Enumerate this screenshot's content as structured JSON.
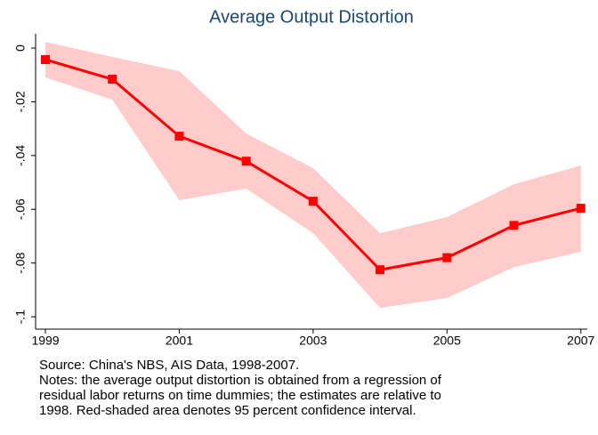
{
  "chart_data": {
    "type": "line",
    "title": "Average Output Distortion",
    "x": [
      1999,
      2000,
      2001,
      2002,
      2003,
      2004,
      2005,
      2006,
      2007
    ],
    "values": [
      -0.0043,
      -0.0116,
      -0.0328,
      -0.0421,
      -0.057,
      -0.0825,
      -0.078,
      -0.066,
      -0.0596
    ],
    "upper": [
      0.0023,
      -0.0033,
      -0.0086,
      -0.0318,
      -0.0447,
      -0.0689,
      -0.0629,
      -0.0507,
      -0.0437
    ],
    "lower": [
      -0.0109,
      -0.0192,
      -0.0566,
      -0.0523,
      -0.0689,
      -0.0967,
      -0.093,
      -0.0815,
      -0.0758
    ],
    "color": "#ff0000",
    "band_color": "#ffcccc",
    "xlim": [
      1998.92,
      2007.07
    ],
    "xticks": [
      1999,
      2001,
      2003,
      2005,
      2007
    ],
    "ylim": [
      -0.1046,
      0.0053
    ],
    "yticks": [
      0,
      {
        "value": -0.02,
        "label": "-.02"
      },
      {
        "value": -0.04,
        "label": "-.04"
      },
      {
        "value": -0.06,
        "label": "-.06"
      },
      {
        "value": -0.08,
        "label": "-.08"
      },
      {
        "value": -0.1,
        "label": "-.1"
      }
    ],
    "notes": [
      "Source: China's NBS, AIS Data, 1998-2007.",
      "Notes: the average output distortion is obtained from a regression of",
      "residual labor returns on time dummies; the estimates are relative to",
      "1998. Red-shaded area denotes 95 percent confidence interval."
    ]
  }
}
